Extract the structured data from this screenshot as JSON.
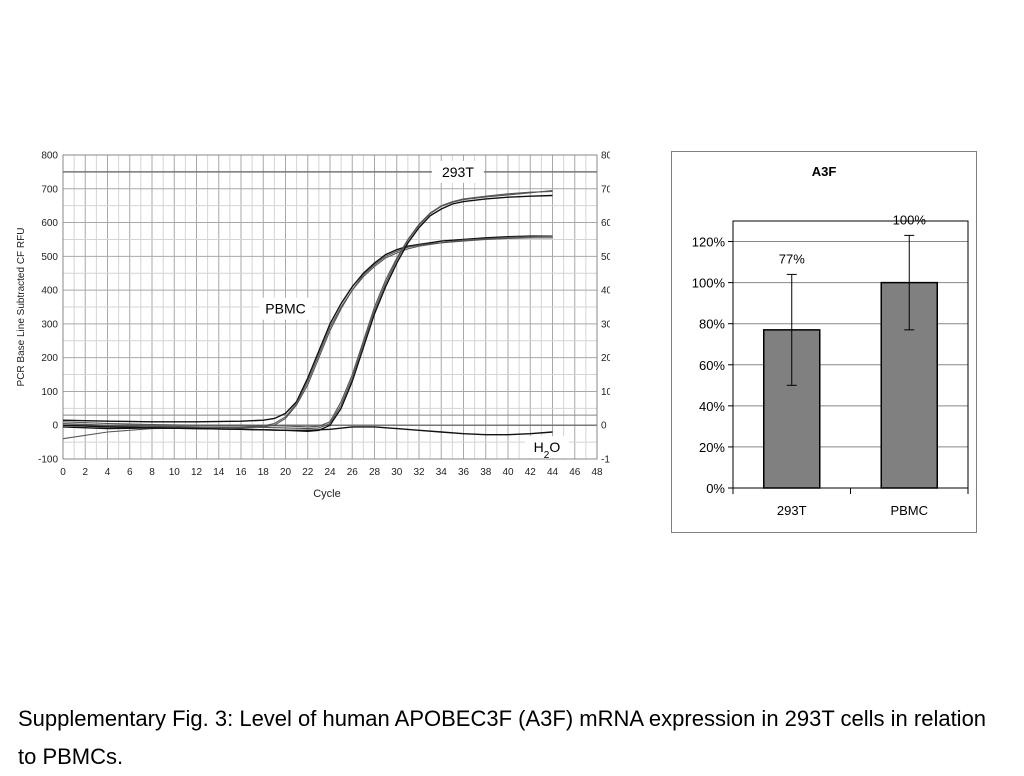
{
  "chart_data": [
    {
      "type": "line",
      "ylabel": "PCR Base Line Subtracted CF RFU",
      "xlabel": "Cycle",
      "xlim": [
        0,
        48
      ],
      "ylim": [
        -100,
        800
      ],
      "x_ticks": [
        "0",
        "2",
        "4",
        "6",
        "8",
        "10",
        "12",
        "14",
        "16",
        "18",
        "20",
        "22",
        "24",
        "26",
        "28",
        "30",
        "32",
        "34",
        "36",
        "38",
        "40",
        "42",
        "44",
        "46",
        "48"
      ],
      "y_ticks": [
        "-100",
        "0",
        "100",
        "200",
        "300",
        "400",
        "500",
        "600",
        "700",
        "800"
      ],
      "grid": true,
      "annotations": [
        {
          "text": "293T",
          "x": 35.5,
          "y": 750
        },
        {
          "text": "PBMC",
          "x": 20,
          "y": 345
        },
        {
          "text": "H",
          "sub": "2",
          "tail": "O",
          "x": 43.5,
          "y": -65
        }
      ],
      "series": [
        {
          "group": "PBMC",
          "x": [
            0,
            4,
            8,
            12,
            16,
            18,
            19,
            20,
            21,
            22,
            23,
            24,
            25,
            26,
            27,
            28,
            29,
            30,
            31,
            32,
            33,
            34,
            36,
            38,
            40,
            42,
            44
          ],
          "y": [
            15,
            12,
            10,
            10,
            12,
            15,
            20,
            35,
            70,
            140,
            220,
            300,
            360,
            410,
            450,
            480,
            505,
            520,
            530,
            535,
            540,
            545,
            550,
            555,
            558,
            560,
            560
          ]
        },
        {
          "group": "PBMC",
          "x": [
            0,
            4,
            8,
            12,
            16,
            18,
            19,
            20,
            21,
            22,
            23,
            24,
            25,
            26,
            27,
            28,
            29,
            30,
            31,
            32,
            33,
            34,
            36,
            38,
            40,
            42,
            44
          ],
          "y": [
            0,
            -2,
            -5,
            -5,
            -8,
            -5,
            0,
            20,
            60,
            120,
            200,
            280,
            345,
            400,
            440,
            470,
            495,
            510,
            522,
            530,
            535,
            540,
            545,
            550,
            553,
            555,
            555
          ]
        },
        {
          "group": "PBMC",
          "x": [
            0,
            4,
            8,
            12,
            16,
            18,
            19,
            20,
            21,
            22,
            23,
            24,
            25,
            26,
            27,
            28,
            29,
            30,
            31,
            32,
            33,
            34,
            36,
            38,
            40,
            42,
            44
          ],
          "y": [
            -40,
            -20,
            -10,
            -8,
            -5,
            -2,
            5,
            25,
            65,
            130,
            210,
            290,
            350,
            400,
            445,
            475,
            500,
            515,
            527,
            533,
            537,
            540,
            548,
            552,
            556,
            558,
            560
          ]
        },
        {
          "group": "293T",
          "x": [
            0,
            4,
            8,
            12,
            16,
            20,
            22,
            23,
            24,
            25,
            26,
            27,
            28,
            29,
            30,
            31,
            32,
            33,
            34,
            35,
            36,
            38,
            40,
            42,
            44
          ],
          "y": [
            -5,
            -10,
            -8,
            -10,
            -12,
            -15,
            -18,
            -15,
            0,
            50,
            130,
            230,
            330,
            410,
            480,
            540,
            585,
            620,
            640,
            655,
            662,
            670,
            675,
            678,
            680
          ]
        },
        {
          "group": "293T",
          "x": [
            0,
            4,
            8,
            12,
            16,
            20,
            22,
            23,
            24,
            25,
            26,
            27,
            28,
            29,
            30,
            31,
            32,
            33,
            34,
            35,
            36,
            38,
            40,
            42,
            44
          ],
          "y": [
            5,
            0,
            -2,
            -5,
            -5,
            -8,
            -10,
            -8,
            5,
            60,
            140,
            240,
            340,
            420,
            490,
            548,
            592,
            626,
            648,
            660,
            668,
            676,
            682,
            688,
            695
          ]
        },
        {
          "group": "293T",
          "x": [
            0,
            4,
            8,
            12,
            16,
            20,
            22,
            23,
            24,
            25,
            26,
            27,
            28,
            29,
            30,
            31,
            32,
            33,
            34,
            35,
            36,
            38,
            40,
            42,
            44
          ],
          "y": [
            10,
            5,
            2,
            0,
            0,
            -2,
            -5,
            -3,
            10,
            70,
            150,
            250,
            350,
            430,
            495,
            550,
            595,
            628,
            650,
            662,
            670,
            678,
            685,
            690,
            692
          ]
        },
        {
          "group": "H2O",
          "x": [
            0,
            4,
            8,
            12,
            16,
            20,
            22,
            24,
            26,
            28,
            30,
            32,
            34,
            36,
            38,
            40,
            42,
            44
          ],
          "y": [
            0,
            -5,
            -8,
            -10,
            -12,
            -15,
            -15,
            -12,
            -5,
            -5,
            -10,
            -15,
            -20,
            -25,
            -28,
            -28,
            -25,
            -20
          ]
        }
      ]
    },
    {
      "type": "bar",
      "title": "A3F",
      "categories": [
        "293T",
        "PBMC"
      ],
      "values": [
        77,
        100
      ],
      "errors": [
        27,
        23
      ],
      "data_labels": [
        "77%",
        "100%"
      ],
      "ylim": [
        0,
        130
      ],
      "y_ticks": [
        "0%",
        "20%",
        "40%",
        "60%",
        "80%",
        "100%",
        "120%"
      ],
      "grid": true,
      "bar_color": "#808080"
    }
  ],
  "caption": "Supplementary Fig. 3: Level of human APOBEC3F (A3F) mRNA expression in 293T cells in relation to PBMCs."
}
